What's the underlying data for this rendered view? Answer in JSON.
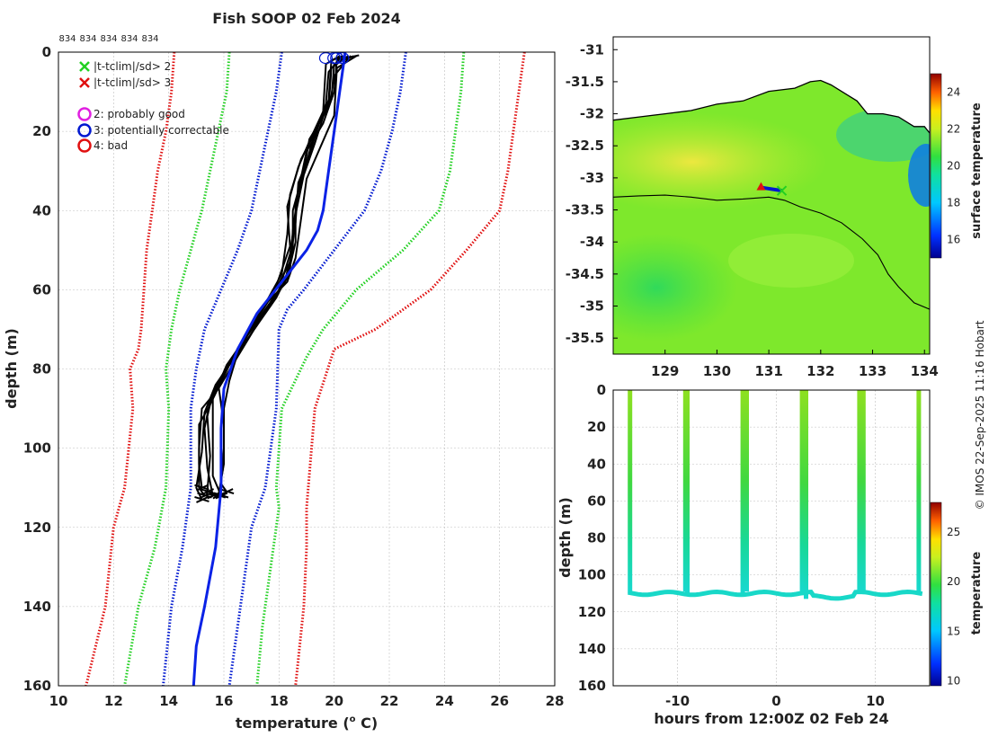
{
  "colors": {
    "clim1": "#0018d0",
    "clim2": "#22d022",
    "clim3": "#e01010",
    "mean": "#0a22e6",
    "profile": "#000000",
    "grid": "#bfbfbf"
  },
  "chart_data": [
    {
      "id": "profile",
      "type": "line",
      "title": "Fish SOOP 02 Feb 2024",
      "xlabel": "temperature (",
      "xlabel_sup": "o",
      "xlabel_end": " C)",
      "ylabel": "depth (m)",
      "xlim": [
        10,
        28
      ],
      "ylim": [
        160,
        0
      ],
      "xticks": [
        "10",
        "12",
        "14",
        "16",
        "18",
        "20",
        "22",
        "24",
        "26",
        "28"
      ],
      "yticks": [
        "0",
        "20",
        "40",
        "60",
        "80",
        "100",
        "120",
        "140",
        "160"
      ],
      "top_labels": [
        "834",
        "834",
        "834",
        "834",
        "834"
      ],
      "legend": [
        {
          "marker": "x",
          "color": "#22d022",
          "label": "|t-tclim|/sd> 2"
        },
        {
          "marker": "x",
          "color": "#e01010",
          "label": "|t-tclim|/sd> 3"
        },
        {
          "marker": "o",
          "color": "#e020e0",
          "label": "2: probably good"
        },
        {
          "marker": "o",
          "color": "#0018d0",
          "label": "3: potentially correctable"
        },
        {
          "marker": "o",
          "color": "#e01010",
          "label": "4: bad"
        }
      ],
      "clim_lines": [
        {
          "name": "mean+3sd",
          "color": "#e01010",
          "points": [
            [
              26.9,
              0
            ],
            [
              26.7,
              10
            ],
            [
              26.5,
              20
            ],
            [
              26.3,
              30
            ],
            [
              26,
              40
            ],
            [
              24.8,
              50
            ],
            [
              23.5,
              60
            ],
            [
              21.5,
              70
            ],
            [
              20,
              75
            ],
            [
              19.3,
              90
            ],
            [
              19,
              115
            ],
            [
              19,
              125
            ],
            [
              18.9,
              140
            ],
            [
              18.6,
              160
            ]
          ]
        },
        {
          "name": "mean-3sd",
          "color": "#e01010",
          "points": [
            [
              14.2,
              0
            ],
            [
              14.1,
              10
            ],
            [
              13.9,
              20
            ],
            [
              13.6,
              30
            ],
            [
              13.4,
              40
            ],
            [
              13.2,
              50
            ],
            [
              13.1,
              60
            ],
            [
              13,
              70
            ],
            [
              12.9,
              75
            ],
            [
              12.6,
              80
            ],
            [
              12.7,
              90
            ],
            [
              12.4,
              110
            ],
            [
              12,
              120
            ],
            [
              11.7,
              140
            ],
            [
              11,
              160
            ]
          ]
        },
        {
          "name": "mean+2sd",
          "color": "#22d022",
          "points": [
            [
              24.7,
              0
            ],
            [
              24.6,
              10
            ],
            [
              24.4,
              20
            ],
            [
              24.2,
              30
            ],
            [
              23.8,
              40
            ],
            [
              22.5,
              50
            ],
            [
              20.8,
              60
            ],
            [
              19.6,
              70
            ],
            [
              19,
              77
            ],
            [
              18.1,
              90
            ],
            [
              17.9,
              110
            ],
            [
              18,
              115
            ],
            [
              17.7,
              130
            ],
            [
              17.4,
              145
            ],
            [
              17.2,
              160
            ]
          ]
        },
        {
          "name": "mean-2sd",
          "color": "#22d022",
          "points": [
            [
              16.2,
              0
            ],
            [
              16.1,
              10
            ],
            [
              15.8,
              20
            ],
            [
              15.5,
              30
            ],
            [
              15.2,
              40
            ],
            [
              14.8,
              50
            ],
            [
              14.4,
              60
            ],
            [
              14.1,
              70
            ],
            [
              13.9,
              80
            ],
            [
              14,
              90
            ],
            [
              13.9,
              110
            ],
            [
              13.5,
              125
            ],
            [
              12.9,
              140
            ],
            [
              12.4,
              160
            ]
          ]
        },
        {
          "name": "mean+1sd",
          "color": "#0018d0",
          "points": [
            [
              22.6,
              0
            ],
            [
              22.4,
              10
            ],
            [
              22.1,
              20
            ],
            [
              21.7,
              30
            ],
            [
              21.1,
              40
            ],
            [
              20,
              50
            ],
            [
              18.9,
              60
            ],
            [
              18.3,
              65
            ],
            [
              18,
              70
            ],
            [
              17.9,
              90
            ],
            [
              17.5,
              110
            ],
            [
              17,
              120
            ],
            [
              16.6,
              140
            ],
            [
              16.2,
              160
            ]
          ]
        },
        {
          "name": "mean-1sd",
          "color": "#0018d0",
          "points": [
            [
              18.1,
              0
            ],
            [
              17.9,
              10
            ],
            [
              17.6,
              20
            ],
            [
              17.3,
              30
            ],
            [
              17,
              40
            ],
            [
              16.5,
              50
            ],
            [
              15.9,
              60
            ],
            [
              15.3,
              70
            ],
            [
              15,
              80
            ],
            [
              14.8,
              90
            ],
            [
              14.8,
              110
            ],
            [
              14.5,
              125
            ],
            [
              14.1,
              140
            ],
            [
              13.8,
              160
            ]
          ]
        }
      ],
      "mean_line": [
        [
          20.4,
          0
        ],
        [
          20.3,
          5
        ],
        [
          20.2,
          10
        ],
        [
          20,
          20
        ],
        [
          19.8,
          30
        ],
        [
          19.6,
          40
        ],
        [
          19.4,
          45
        ],
        [
          19,
          50
        ],
        [
          18.1,
          58
        ],
        [
          17.2,
          66
        ],
        [
          16.5,
          75
        ],
        [
          16,
          85
        ],
        [
          15.9,
          95
        ],
        [
          15.9,
          110
        ],
        [
          15.7,
          125
        ],
        [
          15.3,
          140
        ],
        [
          15,
          150
        ],
        [
          14.9,
          160
        ]
      ],
      "profiles": [
        [
          [
            20.9,
            0.8
          ],
          [
            20.1,
            2
          ],
          [
            20,
            10
          ],
          [
            19.6,
            18
          ],
          [
            19,
            25
          ],
          [
            18.7,
            35
          ],
          [
            18.5,
            45
          ],
          [
            18.4,
            55
          ],
          [
            17.9,
            62
          ],
          [
            17.1,
            70
          ],
          [
            16.4,
            78
          ],
          [
            15.8,
            85
          ],
          [
            15.2,
            90
          ],
          [
            15.1,
            100
          ],
          [
            15.1,
            110
          ],
          [
            15.3,
            112
          ]
        ],
        [
          [
            20.7,
            1
          ],
          [
            20,
            3
          ],
          [
            19.9,
            12
          ],
          [
            19.3,
            20
          ],
          [
            19,
            28
          ],
          [
            18.6,
            38
          ],
          [
            18.6,
            48
          ],
          [
            18.3,
            57
          ],
          [
            17.7,
            64
          ],
          [
            16.8,
            72
          ],
          [
            16.1,
            80
          ],
          [
            15.6,
            86
          ],
          [
            15.4,
            92
          ],
          [
            15.5,
            102
          ],
          [
            15.4,
            111
          ]
        ],
        [
          [
            20.5,
            1
          ],
          [
            19.9,
            4
          ],
          [
            19.8,
            14
          ],
          [
            19.1,
            22
          ],
          [
            18.9,
            30
          ],
          [
            18.5,
            40
          ],
          [
            18.5,
            50
          ],
          [
            18.2,
            58
          ],
          [
            17.5,
            65
          ],
          [
            16.6,
            74
          ],
          [
            15.9,
            82
          ],
          [
            15.5,
            88
          ],
          [
            15.3,
            95
          ],
          [
            15.4,
            105
          ],
          [
            15.6,
            112
          ]
        ],
        [
          [
            20.3,
            0.8
          ],
          [
            19.8,
            5
          ],
          [
            19.7,
            13
          ],
          [
            19.4,
            19
          ],
          [
            18.8,
            27
          ],
          [
            18.4,
            36
          ],
          [
            18.3,
            46
          ],
          [
            18.1,
            56
          ],
          [
            17.3,
            66
          ],
          [
            16.5,
            76
          ],
          [
            16.2,
            83
          ],
          [
            16,
            90
          ],
          [
            16,
            100
          ],
          [
            15.9,
            109
          ],
          [
            16.1,
            111
          ]
        ],
        [
          [
            20.2,
            1
          ],
          [
            19.7,
            3
          ],
          [
            19.6,
            15
          ],
          [
            19.2,
            21
          ],
          [
            18.7,
            29
          ],
          [
            18.3,
            39
          ],
          [
            18.4,
            49
          ],
          [
            17.9,
            59
          ],
          [
            17.1,
            68
          ],
          [
            16.3,
            78
          ],
          [
            15.7,
            84
          ],
          [
            15.3,
            91
          ],
          [
            15.2,
            101
          ],
          [
            15,
            110
          ],
          [
            15.2,
            113
          ]
        ],
        [
          [
            20.6,
            0.9
          ],
          [
            20,
            6
          ],
          [
            19.9,
            11
          ],
          [
            19.5,
            17
          ],
          [
            19.1,
            26
          ],
          [
            18.7,
            33
          ],
          [
            18.6,
            43
          ],
          [
            18.4,
            53
          ],
          [
            17.8,
            61
          ],
          [
            16.9,
            70
          ],
          [
            16,
            81
          ],
          [
            15.6,
            87
          ],
          [
            15.6,
            97
          ],
          [
            15.6,
            107
          ],
          [
            15.9,
            112
          ]
        ],
        [
          [
            20.4,
            1
          ],
          [
            19.9,
            2
          ],
          [
            19.8,
            12
          ],
          [
            19.3,
            23
          ],
          [
            18.9,
            31
          ],
          [
            18.6,
            41
          ],
          [
            18.4,
            51
          ],
          [
            18,
            60
          ],
          [
            17.2,
            69
          ],
          [
            16.2,
            79
          ],
          [
            15.5,
            89
          ],
          [
            15.1,
            94
          ],
          [
            15.1,
            104
          ],
          [
            15.2,
            110
          ]
        ],
        [
          [
            20.8,
            1
          ],
          [
            20.1,
            4
          ],
          [
            20,
            16
          ],
          [
            19.5,
            24
          ],
          [
            19,
            32
          ],
          [
            18.8,
            42
          ],
          [
            18.6,
            52
          ],
          [
            18.3,
            58
          ],
          [
            17.6,
            63
          ],
          [
            16.7,
            73
          ],
          [
            16.1,
            79
          ],
          [
            15.8,
            84
          ],
          [
            16,
            94
          ],
          [
            16,
            104
          ],
          [
            15.8,
            112
          ]
        ]
      ]
    },
    {
      "id": "map",
      "type": "heatmap",
      "xlim": [
        128,
        134.1
      ],
      "ylim": [
        -35.75,
        -30.8
      ],
      "xticks": [
        "129",
        "130",
        "131",
        "132",
        "133",
        "134"
      ],
      "yticks": [
        "-31",
        "-31.5",
        "-32",
        "-32.5",
        "-33",
        "-33.5",
        "-34",
        "-34.5",
        "-35",
        "-35.5"
      ],
      "colorbar_label": "surface temperature",
      "colorbar_ticks": [
        "16",
        "18",
        "20",
        "22",
        "24"
      ],
      "colorbar_range": [
        15,
        25
      ],
      "coastline": [
        [
          128,
          -32.1
        ],
        [
          128.5,
          -32.05
        ],
        [
          129,
          -32.0
        ],
        [
          129.5,
          -31.95
        ],
        [
          130,
          -31.85
        ],
        [
          130.5,
          -31.8
        ],
        [
          131,
          -31.65
        ],
        [
          131.5,
          -31.6
        ],
        [
          131.8,
          -31.5
        ],
        [
          132.0,
          -31.48
        ],
        [
          132.2,
          -31.55
        ],
        [
          132.5,
          -31.7
        ],
        [
          132.7,
          -31.8
        ],
        [
          132.9,
          -32.0
        ],
        [
          133.2,
          -32.0
        ],
        [
          133.5,
          -32.05
        ],
        [
          133.8,
          -32.2
        ],
        [
          134.0,
          -32.2
        ],
        [
          134.1,
          -32.3
        ]
      ],
      "shelf_edge": [
        [
          128,
          -33.3
        ],
        [
          128.5,
          -33.28
        ],
        [
          129,
          -33.27
        ],
        [
          129.5,
          -33.3
        ],
        [
          130,
          -33.35
        ],
        [
          130.5,
          -33.33
        ],
        [
          131,
          -33.3
        ],
        [
          131.3,
          -33.35
        ],
        [
          131.6,
          -33.45
        ],
        [
          132,
          -33.55
        ],
        [
          132.4,
          -33.7
        ],
        [
          132.8,
          -33.95
        ],
        [
          133.1,
          -34.2
        ],
        [
          133.3,
          -34.5
        ],
        [
          133.5,
          -34.7
        ],
        [
          133.8,
          -34.95
        ],
        [
          134.1,
          -35.05
        ]
      ],
      "track": [
        [
          130.85,
          -33.15
        ],
        [
          131.25,
          -33.2
        ]
      ]
    },
    {
      "id": "timeseries",
      "type": "scatter",
      "xlabel": "hours from 12:00Z 02 Feb 24",
      "ylabel": "depth (m)",
      "xlim": [
        -16.5,
        15.5
      ],
      "ylim": [
        160,
        0
      ],
      "xticks": [
        "-10",
        "0",
        "10"
      ],
      "xtick_values": [
        -10,
        0,
        10
      ],
      "yticks": [
        "0",
        "20",
        "40",
        "60",
        "80",
        "100",
        "120",
        "140",
        "160"
      ],
      "colorbar_label": "temperature",
      "colorbar_ticks": [
        "10",
        "15",
        "20",
        "25"
      ],
      "colorbar_range": [
        9.5,
        28
      ],
      "casts": [
        -14.8,
        -9.2,
        -9.0,
        -3.4,
        -3.0,
        2.6,
        3.0,
        8.4,
        8.8,
        14.4
      ],
      "bottom_depths": [
        110,
        109,
        110,
        110,
        109,
        111,
        113,
        110,
        110,
        109
      ]
    }
  ],
  "credit": "© IMOS 22-Sep-2025 11:16 Hobart"
}
